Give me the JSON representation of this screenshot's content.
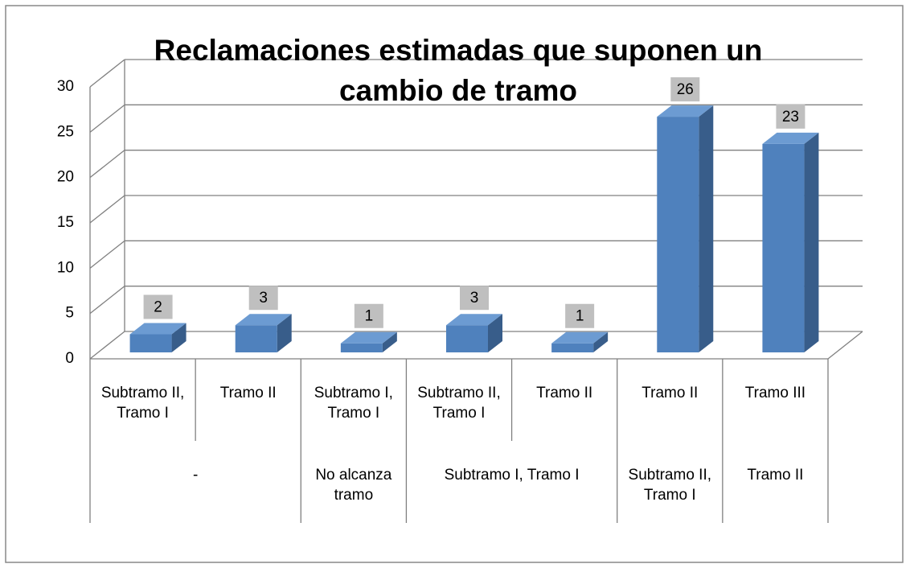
{
  "chart_data": {
    "type": "bar3d",
    "title": "Reclamaciones estimadas que suponen un cambio de tramo",
    "groups": [
      {
        "label": "-",
        "categories": [
          "Subtramo II, Tramo I",
          "Tramo II"
        ]
      },
      {
        "label": "No alcanza tramo",
        "categories": [
          "Subtramo I, Tramo I"
        ]
      },
      {
        "label": "Subtramo I, Tramo I",
        "categories": [
          "Subtramo II, Tramo I",
          "Tramo II"
        ]
      },
      {
        "label": "Subtramo II, Tramo I",
        "categories": [
          "Tramo II"
        ]
      },
      {
        "label": "Tramo II",
        "categories": [
          "Tramo III"
        ]
      }
    ],
    "values": [
      2,
      3,
      1,
      3,
      1,
      26,
      23
    ],
    "color": "#4f81bd",
    "ylim": [
      0,
      30
    ],
    "yticks": [
      0,
      5,
      10,
      15,
      20,
      25,
      30
    ],
    "grid": true
  }
}
